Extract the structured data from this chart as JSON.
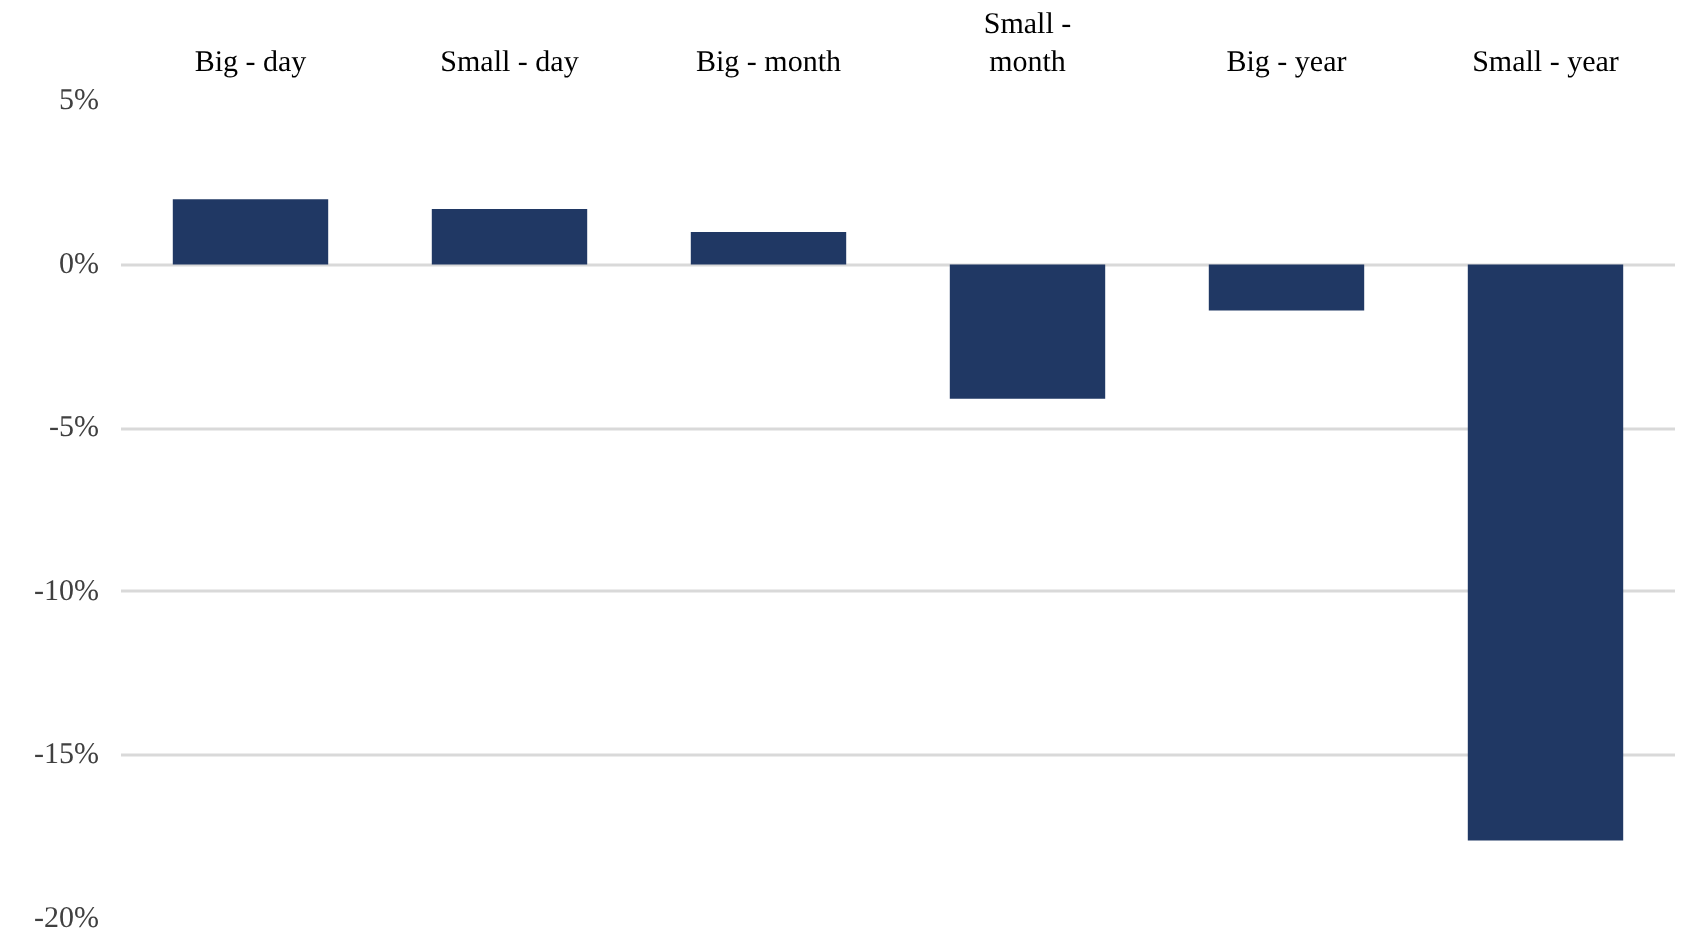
{
  "chart_data": {
    "type": "bar",
    "categories": [
      "Big - day",
      "Small - day",
      "Big - month",
      "Small - month",
      "Big - year",
      "Small - year"
    ],
    "values": [
      2.0,
      1.7,
      1.0,
      -4.1,
      -1.4,
      -17.6
    ],
    "color": "#203864",
    "ylim": [
      -20,
      5
    ],
    "yticks": [
      {
        "value": 5,
        "label": "5%"
      },
      {
        "value": 0,
        "label": "0%"
      },
      {
        "value": -5,
        "label": "-5%"
      },
      {
        "value": -10,
        "label": "-10%"
      },
      {
        "value": -15,
        "label": "-15%"
      },
      {
        "value": -20,
        "label": "-20%"
      }
    ],
    "grid": "y"
  }
}
